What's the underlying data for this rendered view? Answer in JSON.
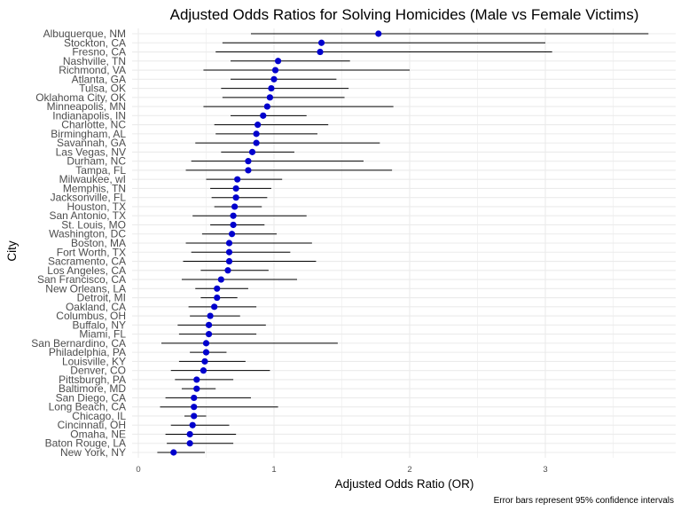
{
  "chart_data": {
    "type": "scatter",
    "title": "Adjusted Odds Ratios for Solving Homicides (Male vs Female Victims)",
    "xlabel": "Adjusted Odds Ratio (OR)",
    "ylabel": "City",
    "caption": "Error bars represent 95% confidence intervals",
    "xlim": [
      -0.05,
      3.9
    ],
    "x_ticks": [
      0,
      1,
      2,
      3
    ],
    "grid": true,
    "colors": {
      "point": "#0000cd",
      "errorbar": "#000000",
      "grid": "#ebebeb"
    },
    "points": [
      {
        "city": "Albuquerque, NM",
        "or": 1.77,
        "lo": 0.83,
        "hi": 3.76
      },
      {
        "city": "Stockton, CA",
        "or": 1.35,
        "lo": 0.62,
        "hi": 3.0
      },
      {
        "city": "Fresno, CA",
        "or": 1.34,
        "lo": 0.57,
        "hi": 3.05
      },
      {
        "city": "Nashville, TN",
        "or": 1.03,
        "lo": 0.68,
        "hi": 1.56
      },
      {
        "city": "Richmond, VA",
        "or": 1.01,
        "lo": 0.48,
        "hi": 2.0
      },
      {
        "city": "Atlanta, GA",
        "or": 1.0,
        "lo": 0.68,
        "hi": 1.46
      },
      {
        "city": "Tulsa, OK",
        "or": 0.98,
        "lo": 0.61,
        "hi": 1.55
      },
      {
        "city": "Oklahoma City, OK",
        "or": 0.97,
        "lo": 0.62,
        "hi": 1.52
      },
      {
        "city": "Minneapolis, MN",
        "or": 0.95,
        "lo": 0.48,
        "hi": 1.88
      },
      {
        "city": "Indianapolis, IN",
        "or": 0.92,
        "lo": 0.68,
        "hi": 1.24
      },
      {
        "city": "Charlotte, NC",
        "or": 0.88,
        "lo": 0.56,
        "hi": 1.4
      },
      {
        "city": "Birmingham, AL",
        "or": 0.87,
        "lo": 0.57,
        "hi": 1.32
      },
      {
        "city": "Savannah, GA",
        "or": 0.87,
        "lo": 0.42,
        "hi": 1.78
      },
      {
        "city": "Las Vegas, NV",
        "or": 0.84,
        "lo": 0.61,
        "hi": 1.15
      },
      {
        "city": "Durham, NC",
        "or": 0.81,
        "lo": 0.39,
        "hi": 1.66
      },
      {
        "city": "Tampa, FL",
        "or": 0.81,
        "lo": 0.35,
        "hi": 1.87
      },
      {
        "city": "Milwaukee, wI",
        "or": 0.73,
        "lo": 0.5,
        "hi": 1.06
      },
      {
        "city": "Memphis, TN",
        "or": 0.72,
        "lo": 0.53,
        "hi": 0.98
      },
      {
        "city": "Jacksonville, FL",
        "or": 0.72,
        "lo": 0.54,
        "hi": 0.95
      },
      {
        "city": "Houston, TX",
        "or": 0.71,
        "lo": 0.56,
        "hi": 0.91
      },
      {
        "city": "San Antonio, TX",
        "or": 0.7,
        "lo": 0.4,
        "hi": 1.24
      },
      {
        "city": "St. Louis, MO",
        "or": 0.7,
        "lo": 0.53,
        "hi": 0.93
      },
      {
        "city": "Washington, DC",
        "or": 0.69,
        "lo": 0.47,
        "hi": 1.02
      },
      {
        "city": "Boston, MA",
        "or": 0.67,
        "lo": 0.35,
        "hi": 1.28
      },
      {
        "city": "Fort Worth, TX",
        "or": 0.67,
        "lo": 0.39,
        "hi": 1.12
      },
      {
        "city": "Sacramento, CA",
        "or": 0.67,
        "lo": 0.33,
        "hi": 1.31
      },
      {
        "city": "Los Angeles, CA",
        "or": 0.66,
        "lo": 0.46,
        "hi": 0.96
      },
      {
        "city": "San Francisco, CA",
        "or": 0.61,
        "lo": 0.32,
        "hi": 1.17
      },
      {
        "city": "New Orleans, LA",
        "or": 0.58,
        "lo": 0.42,
        "hi": 0.81
      },
      {
        "city": "Detroit, MI",
        "or": 0.58,
        "lo": 0.46,
        "hi": 0.73
      },
      {
        "city": "Oakland, CA",
        "or": 0.56,
        "lo": 0.37,
        "hi": 0.87
      },
      {
        "city": "Columbus, OH",
        "or": 0.53,
        "lo": 0.38,
        "hi": 0.75
      },
      {
        "city": "Buffalo, NY",
        "or": 0.52,
        "lo": 0.29,
        "hi": 0.94
      },
      {
        "city": "Miami, FL",
        "or": 0.52,
        "lo": 0.3,
        "hi": 0.87
      },
      {
        "city": "San Bernardino, CA",
        "or": 0.5,
        "lo": 0.17,
        "hi": 1.47
      },
      {
        "city": "Philadelphia, PA",
        "or": 0.5,
        "lo": 0.38,
        "hi": 0.65
      },
      {
        "city": "Louisville, KY",
        "or": 0.49,
        "lo": 0.3,
        "hi": 0.79
      },
      {
        "city": "Denver, CO",
        "or": 0.48,
        "lo": 0.24,
        "hi": 0.97
      },
      {
        "city": "Pittsburgh, PA",
        "or": 0.43,
        "lo": 0.27,
        "hi": 0.7
      },
      {
        "city": "Baltimore, MD",
        "or": 0.43,
        "lo": 0.32,
        "hi": 0.57
      },
      {
        "city": "San Diego, CA",
        "or": 0.41,
        "lo": 0.2,
        "hi": 0.83
      },
      {
        "city": "Long Beach, CA",
        "or": 0.41,
        "lo": 0.16,
        "hi": 1.03
      },
      {
        "city": "Chicago, IL",
        "or": 0.41,
        "lo": 0.34,
        "hi": 0.5
      },
      {
        "city": "Cincinnati, OH",
        "or": 0.4,
        "lo": 0.24,
        "hi": 0.67
      },
      {
        "city": "Omaha, NE",
        "or": 0.38,
        "lo": 0.2,
        "hi": 0.72
      },
      {
        "city": "Baton Rouge, LA",
        "or": 0.38,
        "lo": 0.21,
        "hi": 0.7
      },
      {
        "city": "New York, NY",
        "or": 0.26,
        "lo": 0.14,
        "hi": 0.49
      }
    ]
  }
}
